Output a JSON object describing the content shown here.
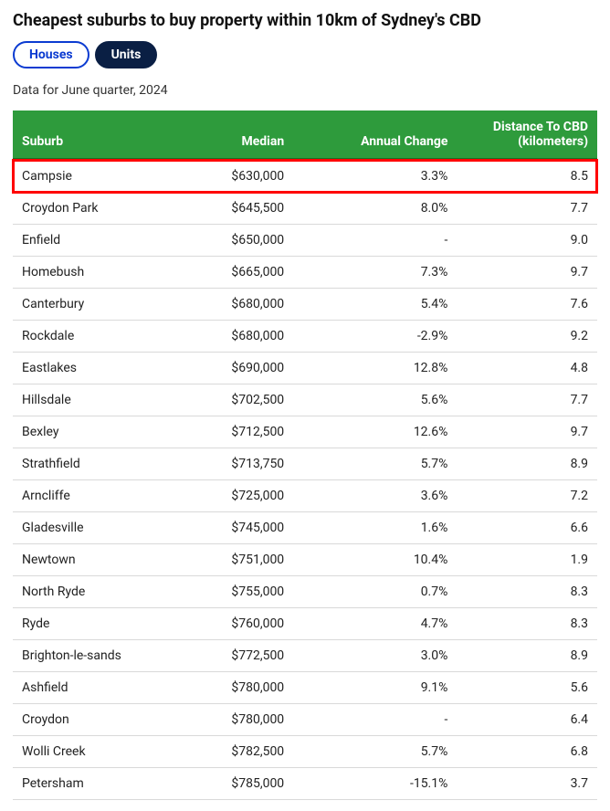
{
  "title": "Cheapest suburbs to buy property within 10km of Sydney's CBD",
  "tabs": {
    "inactive": "Houses",
    "active": "Units"
  },
  "caption": "Data for June quarter, 2024",
  "columns": [
    "Suburb",
    "Median",
    "Annual Change",
    "Distance To CBD (kilometers)"
  ],
  "rows": [
    {
      "suburb": "Campsie",
      "median": "$630,000",
      "change": "3.3%",
      "dist": "8.5",
      "highlight": true
    },
    {
      "suburb": "Croydon Park",
      "median": "$645,500",
      "change": "8.0%",
      "dist": "7.7"
    },
    {
      "suburb": "Enfield",
      "median": "$650,000",
      "change": "-",
      "dist": "9.0"
    },
    {
      "suburb": "Homebush",
      "median": "$665,000",
      "change": "7.3%",
      "dist": "9.7"
    },
    {
      "suburb": "Canterbury",
      "median": "$680,000",
      "change": "5.4%",
      "dist": "7.6"
    },
    {
      "suburb": "Rockdale",
      "median": "$680,000",
      "change": "-2.9%",
      "dist": "9.2"
    },
    {
      "suburb": "Eastlakes",
      "median": "$690,000",
      "change": "12.8%",
      "dist": "4.8"
    },
    {
      "suburb": "Hillsdale",
      "median": "$702,500",
      "change": "5.6%",
      "dist": "7.7"
    },
    {
      "suburb": "Bexley",
      "median": "$712,500",
      "change": "12.6%",
      "dist": "9.7"
    },
    {
      "suburb": "Strathfield",
      "median": "$713,750",
      "change": "5.7%",
      "dist": "8.9"
    },
    {
      "suburb": "Arncliffe",
      "median": "$725,000",
      "change": "3.6%",
      "dist": "7.2"
    },
    {
      "suburb": "Gladesville",
      "median": "$745,000",
      "change": "1.6%",
      "dist": "6.6"
    },
    {
      "suburb": "Newtown",
      "median": "$751,000",
      "change": "10.4%",
      "dist": "1.9"
    },
    {
      "suburb": "North Ryde",
      "median": "$755,000",
      "change": "0.7%",
      "dist": "8.3"
    },
    {
      "suburb": "Ryde",
      "median": "$760,000",
      "change": "4.7%",
      "dist": "8.3"
    },
    {
      "suburb": "Brighton-le-sands",
      "median": "$772,500",
      "change": "3.0%",
      "dist": "8.9"
    },
    {
      "suburb": "Ashfield",
      "median": "$780,000",
      "change": "9.1%",
      "dist": "5.6"
    },
    {
      "suburb": "Croydon",
      "median": "$780,000",
      "change": "-",
      "dist": "6.4"
    },
    {
      "suburb": "Wolli Creek",
      "median": "$782,500",
      "change": "5.7%",
      "dist": "6.8"
    },
    {
      "suburb": "Petersham",
      "median": "$785,000",
      "change": "-15.1%",
      "dist": "3.7"
    }
  ]
}
